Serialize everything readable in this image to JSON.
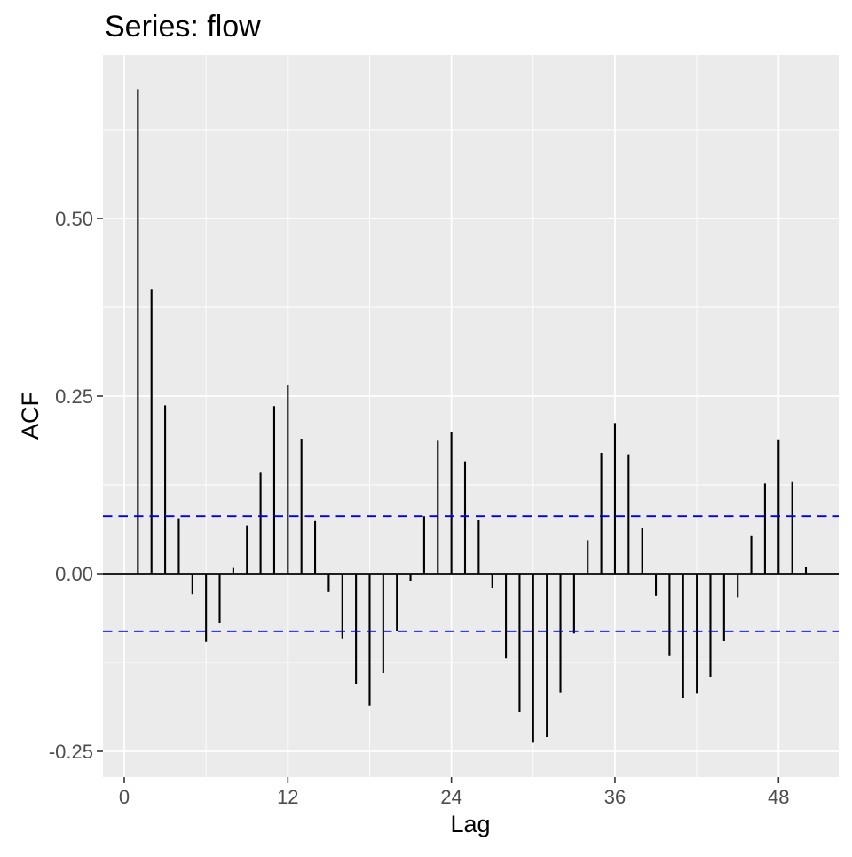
{
  "chart_data": {
    "type": "bar",
    "variant": "acf-stick-plot",
    "title": "Series: flow",
    "xlabel": "Lag",
    "ylabel": "ACF",
    "x": [
      1,
      2,
      3,
      4,
      5,
      6,
      7,
      8,
      9,
      10,
      11,
      12,
      13,
      14,
      15,
      16,
      17,
      18,
      19,
      20,
      21,
      22,
      23,
      24,
      25,
      26,
      27,
      28,
      29,
      30,
      31,
      32,
      33,
      34,
      35,
      36,
      37,
      38,
      39,
      40,
      41,
      42,
      43,
      44,
      45,
      46,
      47,
      48,
      49,
      50
    ],
    "values": [
      0.682,
      0.401,
      0.237,
      0.078,
      -0.029,
      -0.096,
      -0.069,
      0.008,
      0.068,
      0.142,
      0.236,
      0.266,
      0.19,
      0.074,
      -0.026,
      -0.091,
      -0.155,
      -0.186,
      -0.14,
      -0.081,
      -0.01,
      0.081,
      0.187,
      0.199,
      0.158,
      0.075,
      -0.02,
      -0.119,
      -0.195,
      -0.238,
      -0.23,
      -0.167,
      -0.084,
      0.047,
      0.17,
      0.212,
      0.168,
      0.065,
      -0.031,
      -0.116,
      -0.175,
      -0.168,
      -0.145,
      -0.095,
      -0.033,
      0.054,
      0.127,
      0.189,
      0.129,
      0.009
    ],
    "confidence_bounds": {
      "upper": 0.081,
      "lower": -0.081,
      "line_style": "dashed"
    },
    "x_ticks": [
      0,
      12,
      24,
      36,
      48
    ],
    "y_tick_labels": [
      "0.50",
      "0.25",
      "0.00",
      "-0.25"
    ],
    "y_tick_values": [
      0.5,
      0.25,
      0.0,
      -0.25
    ],
    "x_minor_gridlines": [
      6,
      18,
      30,
      42
    ],
    "y_minor_gridlines": [
      0.625,
      0.375,
      0.125,
      -0.125
    ],
    "xlim": [
      -1.45,
      52.45
    ],
    "ylim": [
      -0.287,
      0.731
    ],
    "grid": true,
    "legend": "none",
    "colors": {
      "panel_background": "#EBEBEB",
      "gridline": "#FFFFFF",
      "bar": "#000000",
      "zero_line": "#000000",
      "confidence_line": "#0000EE",
      "axis_text": "#4D4D4D",
      "axis_title": "#000000",
      "title": "#000000",
      "tick_mark": "#333333"
    }
  }
}
